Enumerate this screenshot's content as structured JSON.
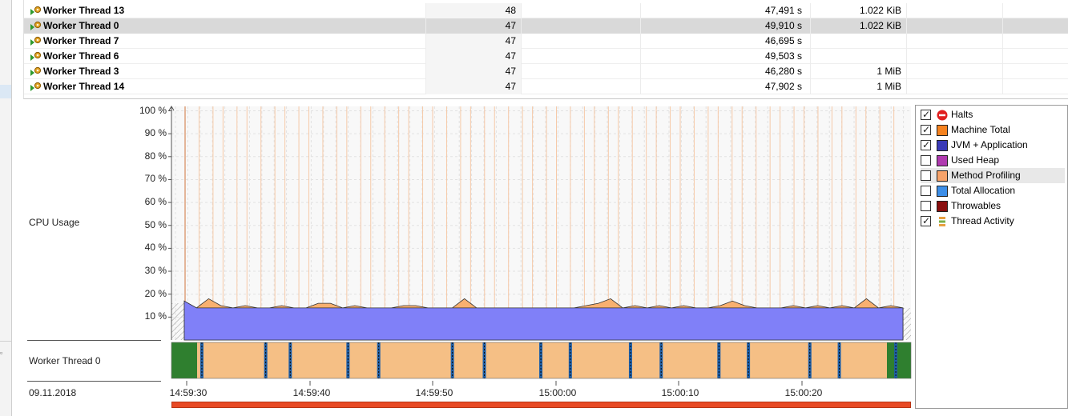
{
  "table": {
    "rows": [
      {
        "name": "Worker Thread 13",
        "count": "48",
        "time": "47,491 s",
        "mem": "1.022 KiB",
        "selected": false
      },
      {
        "name": "Worker Thread 0",
        "count": "47",
        "time": "49,910 s",
        "mem": "1.022 KiB",
        "selected": true
      },
      {
        "name": "Worker Thread 7",
        "count": "47",
        "time": "46,695 s",
        "mem": "",
        "selected": false
      },
      {
        "name": "Worker Thread 6",
        "count": "47",
        "time": "49,503 s",
        "mem": "",
        "selected": false
      },
      {
        "name": "Worker Thread 3",
        "count": "47",
        "time": "46,280 s",
        "mem": "1 MiB",
        "selected": false
      },
      {
        "name": "Worker Thread 14",
        "count": "47",
        "time": "47,902 s",
        "mem": "1 MiB",
        "selected": false
      }
    ]
  },
  "chart": {
    "cpu_label": "CPU Usage",
    "thread_label": "Worker Thread 0",
    "date_label": "09.11.2018",
    "y_ticks": [
      "100 %",
      "90 %",
      "80 %",
      "70 %",
      "60 %",
      "50 %",
      "40 %",
      "30 %",
      "20 %",
      "10 %"
    ],
    "x_ticks": [
      "14:59:30",
      "14:59:40",
      "14:59:50",
      "15:00:00",
      "15:00:10",
      "15:00:20"
    ]
  },
  "chart_data": {
    "type": "area",
    "ylabel": "CPU Usage",
    "ylim": [
      0,
      100
    ],
    "y_unit": "%",
    "x_range": [
      "14:59:30",
      "15:00:28"
    ],
    "grid": true,
    "series": [
      {
        "color": "#8080f8",
        "values": [
          17,
          14,
          14,
          14,
          14,
          14,
          14,
          14,
          14,
          14,
          14,
          14,
          14,
          14,
          14,
          14,
          14,
          14,
          14,
          14,
          14,
          14,
          14,
          14,
          14,
          14,
          14,
          14,
          14,
          14,
          14,
          14,
          14,
          14,
          14,
          14,
          14,
          14,
          14,
          14,
          14,
          14,
          14,
          14,
          14,
          14,
          14,
          14,
          14,
          14,
          14,
          14,
          14,
          14,
          14,
          14,
          14,
          14,
          14,
          14
        ]
      },
      {
        "color": "#f8b070",
        "values": [
          17,
          14,
          18,
          15,
          14,
          15,
          14,
          14,
          15,
          14,
          14,
          16,
          16,
          14,
          15,
          14,
          14,
          14,
          15,
          15,
          14,
          14,
          14,
          18,
          14,
          14,
          14,
          14,
          14,
          14,
          14,
          14,
          14,
          15,
          16,
          18,
          14,
          15,
          14,
          15,
          14,
          15,
          14,
          14,
          15,
          17,
          15,
          14,
          14,
          14,
          15,
          14,
          15,
          14,
          15,
          14,
          18,
          14,
          15,
          14
        ]
      }
    ],
    "thread_states": {
      "colors": {
        "running": "#f5bf85",
        "waiting": "#2f7f2f",
        "blocked": "#1e5fa8"
      },
      "blocked_at_seconds": [
        1.3,
        6.5,
        8.5,
        13.2,
        15.7,
        21.7,
        24.3,
        28.9,
        31.3,
        36.2,
        38.7,
        43.4,
        45.8,
        50.8,
        53.2,
        57.8
      ]
    }
  },
  "legend": {
    "items": [
      {
        "label": "Halts",
        "checked": true,
        "icon": "no-entry-icon",
        "color": "#e02020"
      },
      {
        "label": "Machine Total",
        "checked": true,
        "icon": "swatch",
        "color": "#f5821f"
      },
      {
        "label": "JVM + Application",
        "checked": true,
        "icon": "swatch",
        "color": "#3a3ab8"
      },
      {
        "label": "Used Heap",
        "checked": false,
        "icon": "swatch",
        "color": "#b03ab0"
      },
      {
        "label": "Method Profiling",
        "checked": false,
        "icon": "swatch",
        "color": "#f7a36a",
        "highlighted": true
      },
      {
        "label": "Total Allocation",
        "checked": false,
        "icon": "swatch",
        "color": "#3c8ee8"
      },
      {
        "label": "Throwables",
        "checked": false,
        "icon": "swatch",
        "color": "#8a0e0e"
      },
      {
        "label": "Thread Activity",
        "checked": true,
        "icon": "thread-activity-icon",
        "color": "#e8a040"
      }
    ]
  }
}
